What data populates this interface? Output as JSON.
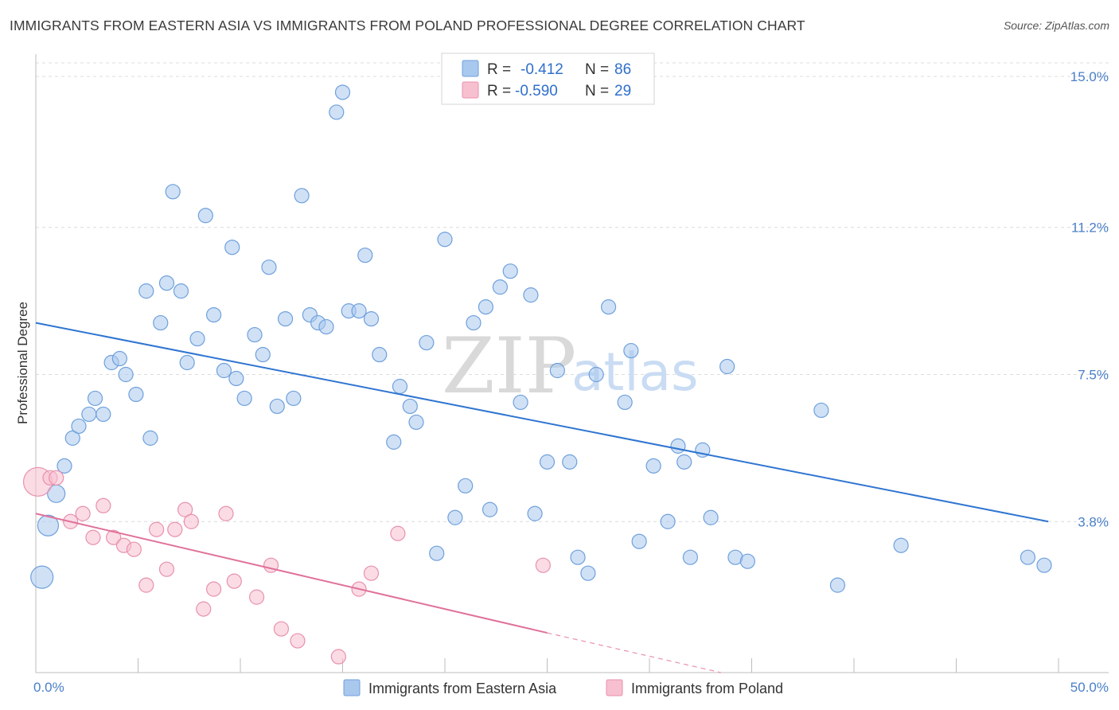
{
  "title": "IMMIGRANTS FROM EASTERN ASIA VS IMMIGRANTS FROM POLAND PROFESSIONAL DEGREE CORRELATION CHART",
  "source": "Source: ZipAtlas.com",
  "watermark": {
    "zip": "ZIP",
    "atlas": "atlas"
  },
  "chart_data": {
    "type": "scatter",
    "title": "IMMIGRANTS FROM EASTERN ASIA VS IMMIGRANTS FROM POLAND PROFESSIONAL DEGREE CORRELATION CHART",
    "xlabel": "",
    "ylabel": "Professional Degree",
    "xlim": [
      0,
      50
    ],
    "ylim": [
      0,
      15.4
    ],
    "x_tick_labels": [
      {
        "value": 0,
        "label": "0.0%"
      },
      {
        "value": 50,
        "label": "50.0%"
      }
    ],
    "y_ticks": [
      {
        "value": 3.8,
        "label": "3.8%"
      },
      {
        "value": 7.5,
        "label": "7.5%"
      },
      {
        "value": 11.2,
        "label": "11.2%"
      },
      {
        "value": 15.0,
        "label": "15.0%"
      }
    ],
    "grid": "horizontal dashed",
    "legend_position": "top-center",
    "series": [
      {
        "name": "Immigrants from Eastern Asia",
        "color": "#a9c8ee",
        "stroke": "#6fa0dc",
        "r_label": "R =",
        "r_value": "-0.412",
        "n_label": "N =",
        "n_value": "86",
        "trend": {
          "x0": 0,
          "y0": 8.8,
          "x1": 49.5,
          "y1": 3.8
        },
        "points": [
          [
            0.3,
            2.4,
            14
          ],
          [
            0.6,
            3.7,
            13
          ],
          [
            1.0,
            4.5,
            11
          ],
          [
            1.4,
            5.2,
            9
          ],
          [
            1.8,
            5.9,
            9
          ],
          [
            2.1,
            6.2,
            9
          ],
          [
            2.6,
            6.5,
            9
          ],
          [
            2.9,
            6.9,
            9
          ],
          [
            3.3,
            6.5,
            9
          ],
          [
            3.7,
            7.8,
            9
          ],
          [
            4.1,
            7.9,
            9
          ],
          [
            4.4,
            7.5,
            9
          ],
          [
            4.9,
            7.0,
            9
          ],
          [
            5.4,
            9.6,
            9
          ],
          [
            5.6,
            5.9,
            9
          ],
          [
            6.1,
            8.8,
            9
          ],
          [
            6.4,
            9.8,
            9
          ],
          [
            6.7,
            12.1,
            9
          ],
          [
            7.1,
            9.6,
            9
          ],
          [
            7.4,
            7.8,
            9
          ],
          [
            7.9,
            8.4,
            9
          ],
          [
            8.3,
            11.5,
            9
          ],
          [
            8.7,
            9.0,
            9
          ],
          [
            9.2,
            7.6,
            9
          ],
          [
            9.6,
            10.7,
            9
          ],
          [
            9.8,
            7.4,
            9
          ],
          [
            10.2,
            6.9,
            9
          ],
          [
            10.7,
            8.5,
            9
          ],
          [
            11.1,
            8.0,
            9
          ],
          [
            11.4,
            10.2,
            9
          ],
          [
            11.8,
            6.7,
            9
          ],
          [
            12.2,
            8.9,
            9
          ],
          [
            12.6,
            6.9,
            9
          ],
          [
            13.0,
            12.0,
            9
          ],
          [
            13.4,
            9.0,
            9
          ],
          [
            13.8,
            8.8,
            9
          ],
          [
            14.2,
            8.7,
            9
          ],
          [
            14.7,
            14.1,
            9
          ],
          [
            15.0,
            14.6,
            9
          ],
          [
            15.3,
            9.1,
            9
          ],
          [
            15.8,
            9.1,
            9
          ],
          [
            16.1,
            10.5,
            9
          ],
          [
            16.4,
            8.9,
            9
          ],
          [
            16.8,
            8.0,
            9
          ],
          [
            17.5,
            5.8,
            9
          ],
          [
            17.8,
            7.2,
            9
          ],
          [
            18.3,
            6.7,
            9
          ],
          [
            18.6,
            6.3,
            9
          ],
          [
            19.1,
            8.3,
            9
          ],
          [
            19.6,
            3.0,
            9
          ],
          [
            20.0,
            10.9,
            9
          ],
          [
            20.5,
            3.9,
            9
          ],
          [
            21.0,
            4.7,
            9
          ],
          [
            21.4,
            8.8,
            9
          ],
          [
            22.0,
            9.2,
            9
          ],
          [
            22.2,
            4.1,
            9
          ],
          [
            22.7,
            9.7,
            9
          ],
          [
            23.2,
            10.1,
            9
          ],
          [
            23.7,
            6.8,
            9
          ],
          [
            24.2,
            9.5,
            9
          ],
          [
            24.4,
            4.0,
            9
          ],
          [
            25.0,
            5.3,
            9
          ],
          [
            25.5,
            7.6,
            9
          ],
          [
            26.1,
            5.3,
            9
          ],
          [
            26.5,
            2.9,
            9
          ],
          [
            27.0,
            2.5,
            9
          ],
          [
            27.4,
            7.5,
            9
          ],
          [
            28.0,
            9.2,
            9
          ],
          [
            28.8,
            6.8,
            9
          ],
          [
            29.1,
            8.1,
            9
          ],
          [
            29.5,
            3.3,
            9
          ],
          [
            30.2,
            5.2,
            9
          ],
          [
            30.9,
            3.8,
            9
          ],
          [
            31.4,
            5.7,
            9
          ],
          [
            31.7,
            5.3,
            9
          ],
          [
            32.0,
            2.9,
            9
          ],
          [
            32.6,
            5.6,
            9
          ],
          [
            33.0,
            3.9,
            9
          ],
          [
            33.8,
            7.7,
            9
          ],
          [
            34.2,
            2.9,
            9
          ],
          [
            34.8,
            2.8,
            9
          ],
          [
            38.4,
            6.6,
            9
          ],
          [
            39.2,
            2.2,
            9
          ],
          [
            42.3,
            3.2,
            9
          ],
          [
            48.5,
            2.9,
            9
          ],
          [
            49.3,
            2.7,
            9
          ]
        ]
      },
      {
        "name": "Immigrants from Poland",
        "color": "#f7c0d0",
        "stroke": "#e891ad",
        "r_label": "R =",
        "r_value": "-0.590",
        "n_label": "N =",
        "n_value": "29",
        "trend": {
          "x0": 0,
          "y0": 4.0,
          "x1": 25,
          "y1": 1.0
        },
        "trend_dashed": {
          "x0": 25,
          "y0": 1.0,
          "x1": 33.5,
          "y1": 0.0
        },
        "points": [
          [
            0.1,
            4.8,
            18
          ],
          [
            0.7,
            4.9,
            9
          ],
          [
            1.0,
            4.9,
            9
          ],
          [
            1.7,
            3.8,
            9
          ],
          [
            2.3,
            4.0,
            9
          ],
          [
            2.8,
            3.4,
            9
          ],
          [
            3.3,
            4.2,
            9
          ],
          [
            3.8,
            3.4,
            9
          ],
          [
            4.3,
            3.2,
            9
          ],
          [
            4.8,
            3.1,
            9
          ],
          [
            5.4,
            2.2,
            9
          ],
          [
            5.9,
            3.6,
            9
          ],
          [
            6.4,
            2.6,
            9
          ],
          [
            6.8,
            3.6,
            9
          ],
          [
            7.3,
            4.1,
            9
          ],
          [
            7.6,
            3.8,
            9
          ],
          [
            8.2,
            1.6,
            9
          ],
          [
            8.7,
            2.1,
            9
          ],
          [
            9.3,
            4.0,
            9
          ],
          [
            9.7,
            2.3,
            9
          ],
          [
            10.8,
            1.9,
            9
          ],
          [
            11.5,
            2.7,
            9
          ],
          [
            12.0,
            1.1,
            9
          ],
          [
            12.8,
            0.8,
            9
          ],
          [
            14.8,
            0.4,
            9
          ],
          [
            15.8,
            2.1,
            9
          ],
          [
            16.4,
            2.5,
            9
          ],
          [
            17.7,
            3.5,
            9
          ],
          [
            24.8,
            2.7,
            9
          ]
        ]
      }
    ]
  }
}
